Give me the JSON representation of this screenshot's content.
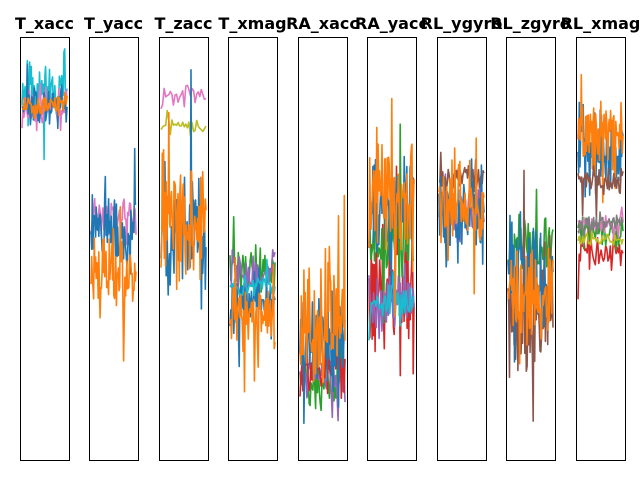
{
  "chart_data": {
    "type": "line",
    "axes_visible": false,
    "grid": false,
    "legend": "none",
    "palette": [
      "#1f77b4",
      "#ff7f0e",
      "#2ca02c",
      "#d62728",
      "#9467bd",
      "#8c564b",
      "#e377c2",
      "#7f7f7f",
      "#bcbd22",
      "#17becf"
    ],
    "panels": [
      {
        "title": "T_xacc",
        "ylim": [
          0,
          1
        ],
        "series": [
          {
            "color": "#17becf",
            "center": 0.88,
            "spread": 0.1,
            "samples": 60,
            "seed": 11
          },
          {
            "color": "#e377c2",
            "center": 0.83,
            "spread": 0.08,
            "samples": 50,
            "seed": 12
          },
          {
            "color": "#1f77b4",
            "center": 0.84,
            "spread": 0.07,
            "samples": 60,
            "seed": 13
          },
          {
            "color": "#ff7f0e",
            "center": 0.84,
            "spread": 0.05,
            "samples": 60,
            "seed": 14
          }
        ]
      },
      {
        "title": "T_yacc",
        "ylim": [
          0,
          1
        ],
        "series": [
          {
            "color": "#e377c2",
            "center": 0.58,
            "spread": 0.08,
            "samples": 50,
            "seed": 21
          },
          {
            "color": "#1f77b4",
            "center": 0.55,
            "spread": 0.14,
            "samples": 70,
            "seed": 22
          },
          {
            "color": "#ff7f0e",
            "center": 0.45,
            "spread": 0.16,
            "samples": 70,
            "seed": 23
          }
        ]
      },
      {
        "title": "T_zacc",
        "ylim": [
          0,
          1
        ],
        "series": [
          {
            "color": "#e377c2",
            "center": 0.86,
            "spread": 0.04,
            "samples": 30,
            "seed": 31
          },
          {
            "color": "#bcbd22",
            "center": 0.79,
            "spread": 0.04,
            "samples": 30,
            "seed": 32
          },
          {
            "color": "#1f77b4",
            "center": 0.56,
            "spread": 0.22,
            "samples": 70,
            "seed": 33
          },
          {
            "color": "#ff7f0e",
            "center": 0.56,
            "spread": 0.2,
            "samples": 70,
            "seed": 34
          }
        ]
      },
      {
        "title": "T_xmag",
        "ylim": [
          0,
          1
        ],
        "series": [
          {
            "color": "#2ca02c",
            "center": 0.45,
            "spread": 0.08,
            "samples": 50,
            "seed": 41
          },
          {
            "color": "#9467bd",
            "center": 0.44,
            "spread": 0.07,
            "samples": 40,
            "seed": 42
          },
          {
            "color": "#1f77b4",
            "center": 0.37,
            "spread": 0.1,
            "samples": 60,
            "seed": 43
          },
          {
            "color": "#17becf",
            "center": 0.41,
            "spread": 0.04,
            "samples": 40,
            "seed": 44
          },
          {
            "color": "#ff7f0e",
            "center": 0.34,
            "spread": 0.11,
            "samples": 60,
            "seed": 45
          }
        ]
      },
      {
        "title": "RA_xacc",
        "ylim": [
          0,
          1
        ],
        "series": [
          {
            "color": "#2ca02c",
            "center": 0.18,
            "spread": 0.1,
            "samples": 50,
            "seed": 51
          },
          {
            "color": "#9467bd",
            "center": 0.2,
            "spread": 0.08,
            "samples": 40,
            "seed": 52
          },
          {
            "color": "#d62728",
            "center": 0.22,
            "spread": 0.1,
            "samples": 50,
            "seed": 53
          },
          {
            "color": "#1f77b4",
            "center": 0.28,
            "spread": 0.16,
            "samples": 70,
            "seed": 54
          },
          {
            "color": "#ff7f0e",
            "center": 0.33,
            "spread": 0.22,
            "samples": 70,
            "seed": 55
          }
        ]
      },
      {
        "title": "RA_yacc",
        "ylim": [
          0,
          1
        ],
        "series": [
          {
            "color": "#d62728",
            "center": 0.4,
            "spread": 0.28,
            "samples": 60,
            "seed": 61
          },
          {
            "color": "#2ca02c",
            "center": 0.52,
            "spread": 0.18,
            "samples": 50,
            "seed": 62
          },
          {
            "color": "#9467bd",
            "center": 0.38,
            "spread": 0.12,
            "samples": 50,
            "seed": 63
          },
          {
            "color": "#17becf",
            "center": 0.37,
            "spread": 0.06,
            "samples": 40,
            "seed": 64
          },
          {
            "color": "#1f77b4",
            "center": 0.58,
            "spread": 0.16,
            "samples": 70,
            "seed": 65
          },
          {
            "color": "#ff7f0e",
            "center": 0.63,
            "spread": 0.2,
            "samples": 70,
            "seed": 66
          }
        ]
      },
      {
        "title": "RL_ygyro",
        "ylim": [
          0,
          1
        ],
        "series": [
          {
            "color": "#9467bd",
            "center": 0.58,
            "spread": 0.1,
            "samples": 50,
            "seed": 71
          },
          {
            "color": "#8c564b",
            "center": 0.67,
            "spread": 0.06,
            "samples": 50,
            "seed": 72
          },
          {
            "color": "#1f77b4",
            "center": 0.58,
            "spread": 0.16,
            "samples": 70,
            "seed": 73
          },
          {
            "color": "#ff7f0e",
            "center": 0.61,
            "spread": 0.14,
            "samples": 70,
            "seed": 74
          }
        ]
      },
      {
        "title": "RL_zgyro",
        "ylim": [
          0,
          1
        ],
        "series": [
          {
            "color": "#2ca02c",
            "center": 0.5,
            "spread": 0.12,
            "samples": 50,
            "seed": 81
          },
          {
            "color": "#8c564b",
            "center": 0.34,
            "spread": 0.22,
            "samples": 60,
            "seed": 82
          },
          {
            "color": "#1f77b4",
            "center": 0.44,
            "spread": 0.2,
            "samples": 70,
            "seed": 83
          },
          {
            "color": "#ff7f0e",
            "center": 0.4,
            "spread": 0.18,
            "samples": 70,
            "seed": 84
          }
        ]
      },
      {
        "title": "RL_xmag",
        "ylim": [
          0,
          1
        ],
        "series": [
          {
            "color": "#d62728",
            "center": 0.5,
            "spread": 0.08,
            "samples": 40,
            "seed": 91
          },
          {
            "color": "#2ca02c",
            "center": 0.54,
            "spread": 0.06,
            "samples": 40,
            "seed": 92
          },
          {
            "color": "#1f77b4",
            "center": 0.73,
            "spread": 0.14,
            "samples": 70,
            "seed": 93
          },
          {
            "color": "#ff7f0e",
            "center": 0.78,
            "spread": 0.14,
            "samples": 70,
            "seed": 94
          },
          {
            "color": "#8c564b",
            "center": 0.66,
            "spread": 0.05,
            "samples": 50,
            "seed": 95
          },
          {
            "color": "#e377c2",
            "center": 0.56,
            "spread": 0.03,
            "samples": 40,
            "seed": 96
          },
          {
            "color": "#7f7f7f",
            "center": 0.56,
            "spread": 0.03,
            "samples": 50,
            "seed": 97
          },
          {
            "color": "#bcbd22",
            "center": 0.52,
            "spread": 0.02,
            "samples": 40,
            "seed": 98
          }
        ]
      }
    ]
  }
}
